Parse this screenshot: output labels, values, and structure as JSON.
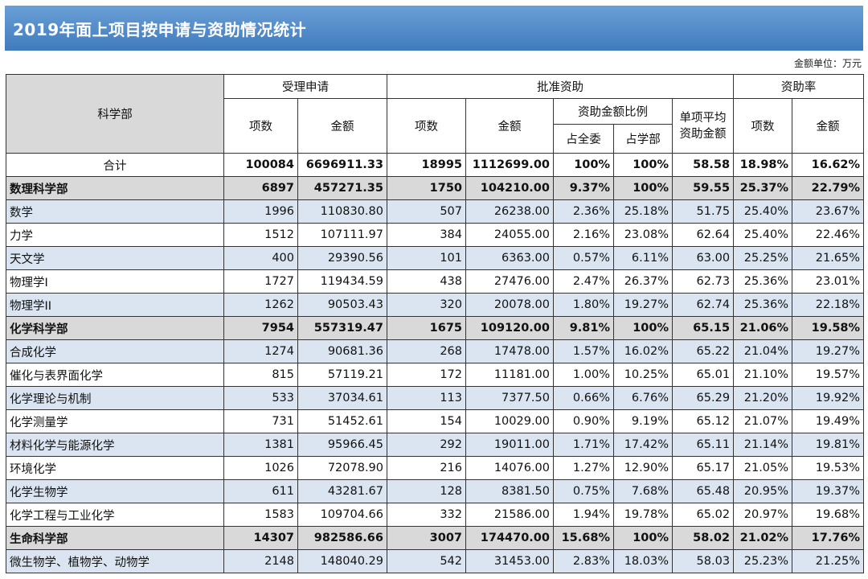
{
  "title": "2019年面上项目按申请与资助情况统计",
  "unit_note": "金额单位：万元",
  "headers": {
    "dept": "科学部",
    "accepted": "受理申请",
    "approved": "批准资助",
    "rate": "资助率",
    "count": "项数",
    "amount": "金额",
    "ratio": "资助金额比例",
    "avg_line1": "单项平均",
    "avg_line2": "资助金额",
    "share_all": "占全委",
    "share_dept": "占学部"
  },
  "rows": [
    {
      "type": "total",
      "name": "合计",
      "acc_count": "100084",
      "acc_amount": "6696911.33",
      "app_count": "18995",
      "app_amount": "1112699.00",
      "share_all": "100%",
      "share_dept": "100%",
      "avg": "58.58",
      "rate_count": "18.98%",
      "rate_amount": "16.62%"
    },
    {
      "type": "dept",
      "name": "数理科学部",
      "acc_count": "6897",
      "acc_amount": "457271.35",
      "app_count": "1750",
      "app_amount": "104210.00",
      "share_all": "9.37%",
      "share_dept": "100%",
      "avg": "59.55",
      "rate_count": "25.37%",
      "rate_amount": "22.79%"
    },
    {
      "type": "sub",
      "name": "数学",
      "acc_count": "1996",
      "acc_amount": "110830.80",
      "app_count": "507",
      "app_amount": "26238.00",
      "share_all": "2.36%",
      "share_dept": "25.18%",
      "avg": "51.75",
      "rate_count": "25.40%",
      "rate_amount": "23.67%"
    },
    {
      "type": "sub",
      "name": "力学",
      "acc_count": "1512",
      "acc_amount": "107111.97",
      "app_count": "384",
      "app_amount": "24055.00",
      "share_all": "2.16%",
      "share_dept": "23.08%",
      "avg": "62.64",
      "rate_count": "25.40%",
      "rate_amount": "22.46%"
    },
    {
      "type": "sub",
      "name": "天文学",
      "acc_count": "400",
      "acc_amount": "29390.56",
      "app_count": "101",
      "app_amount": "6363.00",
      "share_all": "0.57%",
      "share_dept": "6.11%",
      "avg": "63.00",
      "rate_count": "25.25%",
      "rate_amount": "21.65%"
    },
    {
      "type": "sub",
      "name": "物理学I",
      "acc_count": "1727",
      "acc_amount": "119434.59",
      "app_count": "438",
      "app_amount": "27476.00",
      "share_all": "2.47%",
      "share_dept": "26.37%",
      "avg": "62.73",
      "rate_count": "25.36%",
      "rate_amount": "23.01%"
    },
    {
      "type": "sub",
      "name": "物理学II",
      "acc_count": "1262",
      "acc_amount": "90503.43",
      "app_count": "320",
      "app_amount": "20078.00",
      "share_all": "1.80%",
      "share_dept": "19.27%",
      "avg": "62.74",
      "rate_count": "25.36%",
      "rate_amount": "22.18%"
    },
    {
      "type": "dept",
      "name": "化学科学部",
      "acc_count": "7954",
      "acc_amount": "557319.47",
      "app_count": "1675",
      "app_amount": "109120.00",
      "share_all": "9.81%",
      "share_dept": "100%",
      "avg": "65.15",
      "rate_count": "21.06%",
      "rate_amount": "19.58%"
    },
    {
      "type": "sub",
      "name": "合成化学",
      "acc_count": "1274",
      "acc_amount": "90681.36",
      "app_count": "268",
      "app_amount": "17478.00",
      "share_all": "1.57%",
      "share_dept": "16.02%",
      "avg": "65.22",
      "rate_count": "21.04%",
      "rate_amount": "19.27%"
    },
    {
      "type": "sub",
      "name": "催化与表界面化学",
      "acc_count": "815",
      "acc_amount": "57119.21",
      "app_count": "172",
      "app_amount": "11181.00",
      "share_all": "1.00%",
      "share_dept": "10.25%",
      "avg": "65.01",
      "rate_count": "21.10%",
      "rate_amount": "19.57%"
    },
    {
      "type": "sub",
      "name": "化学理论与机制",
      "acc_count": "533",
      "acc_amount": "37034.61",
      "app_count": "113",
      "app_amount": "7377.50",
      "share_all": "0.66%",
      "share_dept": "6.76%",
      "avg": "65.29",
      "rate_count": "21.20%",
      "rate_amount": "19.92%"
    },
    {
      "type": "sub",
      "name": "化学测量学",
      "acc_count": "731",
      "acc_amount": "51452.61",
      "app_count": "154",
      "app_amount": "10029.00",
      "share_all": "0.90%",
      "share_dept": "9.19%",
      "avg": "65.12",
      "rate_count": "21.07%",
      "rate_amount": "19.49%"
    },
    {
      "type": "sub",
      "name": "材料化学与能源化学",
      "acc_count": "1381",
      "acc_amount": "95966.45",
      "app_count": "292",
      "app_amount": "19011.00",
      "share_all": "1.71%",
      "share_dept": "17.42%",
      "avg": "65.11",
      "rate_count": "21.14%",
      "rate_amount": "19.81%"
    },
    {
      "type": "sub",
      "name": "环境化学",
      "acc_count": "1026",
      "acc_amount": "72078.90",
      "app_count": "216",
      "app_amount": "14076.00",
      "share_all": "1.27%",
      "share_dept": "12.90%",
      "avg": "65.17",
      "rate_count": "21.05%",
      "rate_amount": "19.53%"
    },
    {
      "type": "sub",
      "name": "化学生物学",
      "acc_count": "611",
      "acc_amount": "43281.67",
      "app_count": "128",
      "app_amount": "8381.50",
      "share_all": "0.75%",
      "share_dept": "7.68%",
      "avg": "65.48",
      "rate_count": "20.95%",
      "rate_amount": "19.37%"
    },
    {
      "type": "sub",
      "name": "化学工程与工业化学",
      "acc_count": "1583",
      "acc_amount": "109704.66",
      "app_count": "332",
      "app_amount": "21586.00",
      "share_all": "1.94%",
      "share_dept": "19.78%",
      "avg": "65.02",
      "rate_count": "20.97%",
      "rate_amount": "19.68%"
    },
    {
      "type": "dept",
      "name": "生命科学部",
      "acc_count": "14307",
      "acc_amount": "982586.66",
      "app_count": "3007",
      "app_amount": "174470.00",
      "share_all": "15.68%",
      "share_dept": "100%",
      "avg": "58.02",
      "rate_count": "21.02%",
      "rate_amount": "17.76%"
    },
    {
      "type": "sub",
      "name": "微生物学、植物学、动物学",
      "acc_count": "2148",
      "acc_amount": "148040.29",
      "app_count": "542",
      "app_amount": "31453.00",
      "share_all": "2.83%",
      "share_dept": "18.03%",
      "avg": "58.03",
      "rate_count": "25.23%",
      "rate_amount": "21.25%"
    }
  ]
}
